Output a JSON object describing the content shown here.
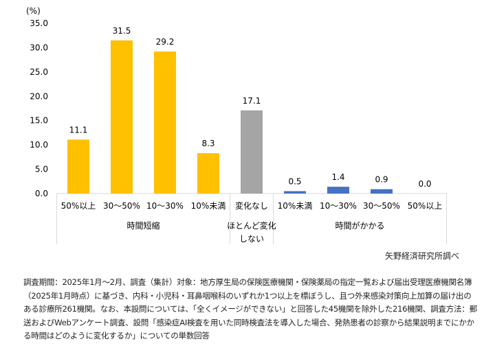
{
  "chart_data": {
    "type": "bar",
    "ylabel": "(%)",
    "ylim": [
      0,
      35
    ],
    "yticks": [
      "0.0",
      "5.0",
      "10.0",
      "15.0",
      "20.0",
      "25.0",
      "30.0",
      "35.0"
    ],
    "grid": false,
    "categories": [
      "50%以上",
      "30～50%",
      "10～30%",
      "10%未満",
      "変化なし",
      "10%未満",
      "10～30%",
      "30～50%",
      "50%以上"
    ],
    "values": [
      11.1,
      31.5,
      29.2,
      8.3,
      17.1,
      0.5,
      1.4,
      0.9,
      0.0
    ],
    "value_labels": [
      "11.1",
      "31.5",
      "29.2",
      "8.3",
      "17.1",
      "0.5",
      "1.4",
      "0.9",
      "0.0"
    ],
    "groups": [
      {
        "label": "時間短縮",
        "members": [
          0,
          1,
          2,
          3
        ],
        "color": "#FFC000"
      },
      {
        "label": "ほとんど変化しない",
        "lines": [
          "ほとんど変化",
          "しない"
        ],
        "members": [
          4
        ],
        "color": "#A5A5A5"
      },
      {
        "label": "時間がかかる",
        "members": [
          5,
          6,
          7,
          8
        ],
        "color": "#4472C4"
      }
    ]
  },
  "source": "矢野経済研究所調べ",
  "note": "調査期間：2025年1月～2月、調査（集計）対象：地方厚生局の保険医療機関・保険薬局の指定一覧および届出受理医療機関名簿（2025年1月時点）に基づき、内科・小児科・耳鼻咽喉科のいずれか1つ以上を標ぼうし、且つ外来感染対策向上加算の届け出のある診療所261機関。なお、本設問については、「全くイメージができない」と回答した45機関を除外した216機関、調査方法：郵送およびWebアンケート調査、設問「感染症AI検査を用いた同時検査法を導入した場合、発熱患者の診察から結果説明までにかかる時間はどのように変化するか」についての単数回答"
}
